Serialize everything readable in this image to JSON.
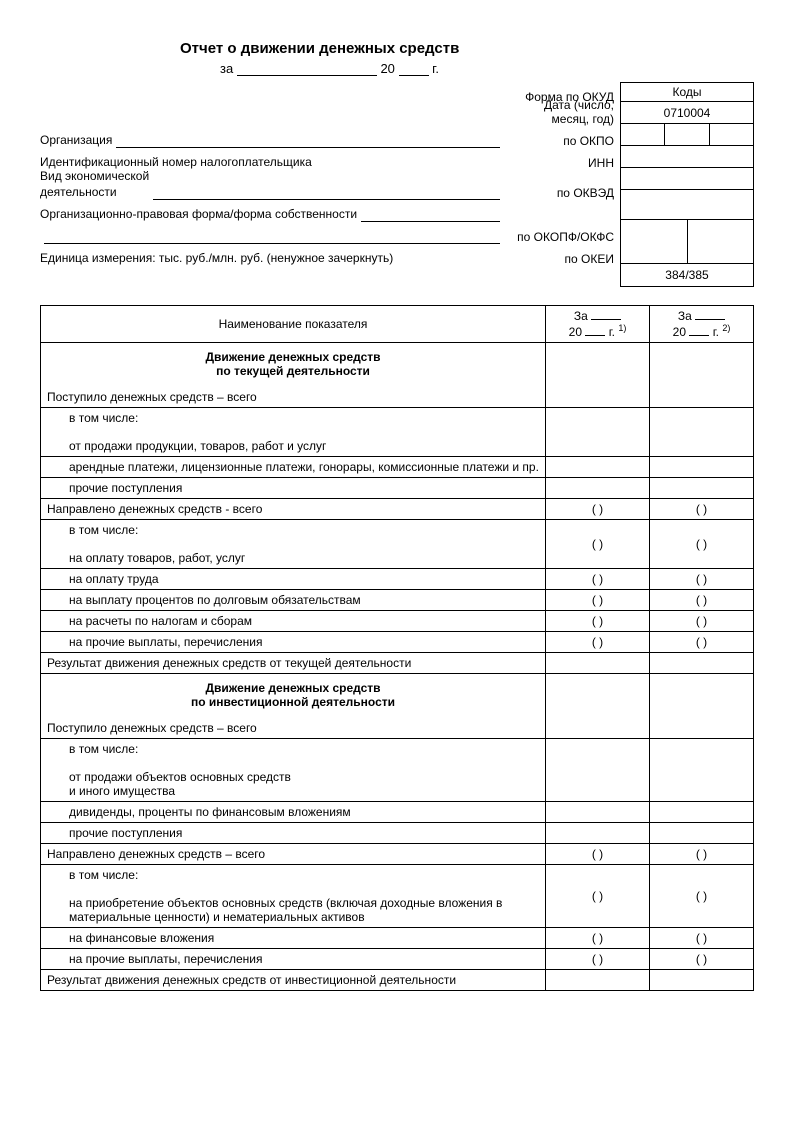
{
  "title": "Отчет о движении денежных средств",
  "subtitle_prefix": "за",
  "subtitle_mid": "20",
  "subtitle_suffix": "г.",
  "kody_title": "Коды",
  "header_rows": [
    {
      "left": "",
      "right_label": "Форма по ОКУД",
      "code": "0710004",
      "split": "single"
    },
    {
      "left": "",
      "right_label": "Дата (число, месяц, год)",
      "code": "",
      "split": "3"
    },
    {
      "left": "Организация",
      "fill": true,
      "right_label": "по ОКПО",
      "code": "",
      "split": "single"
    },
    {
      "left": "Идентификационный номер налогоплательщика",
      "right_label": "ИНН",
      "code": "",
      "split": "single"
    },
    {
      "left": "Вид экономической\nдеятельности",
      "fill": true,
      "right_label": "по ОКВЭД",
      "code": "",
      "split": "single"
    },
    {
      "left": "Организационно-правовая форма/форма собственности",
      "fill": true,
      "right_label": "",
      "code": "",
      "split": "2"
    },
    {
      "left": "",
      "fill": true,
      "right_label": "по ОКОПФ/ОКФС",
      "code": "",
      "split": "none_continue"
    },
    {
      "left": "Единица измерения: тыс. руб./млн. руб. (ненужное зачеркнуть)",
      "right_label": "по ОКЕИ",
      "code": "384/385",
      "split": "single"
    }
  ],
  "col_header_name": "Наименование показателя",
  "period_prefix": "За",
  "period_year_prefix": "20",
  "period_year_suffix": "г.",
  "footnote1": "1)",
  "footnote2": "2)",
  "bracket": "(     )",
  "rows": [
    {
      "type": "section",
      "text": "Движение денежных средств\nпо текущей деятельности"
    },
    {
      "type": "plain_nosplit",
      "text": "Поступило денежных средств – всего",
      "p1": "",
      "p2": ""
    },
    {
      "type": "indent_multiline",
      "text": "в том числе:\n\nот продажи продукции, товаров, работ и услуг",
      "p1": "",
      "p2": ""
    },
    {
      "type": "indent",
      "text": "арендные платежи, лицензионные платежи, гонорары, комиссионные платежи и пр.",
      "p1": "",
      "p2": ""
    },
    {
      "type": "indent",
      "text": "прочие поступления",
      "p1": "",
      "p2": ""
    },
    {
      "type": "plain",
      "text": "Направлено денежных средств - всего",
      "p1": "(     )",
      "p2": "(     )"
    },
    {
      "type": "indent_multiline",
      "text": "в том числе:\n\nна оплату товаров, работ, услуг",
      "p1": "(     )",
      "p2": "(     )"
    },
    {
      "type": "indent",
      "text": "на оплату труда",
      "p1": "(     )",
      "p2": "(     )"
    },
    {
      "type": "indent",
      "text": "на выплату процентов по долговым обязательствам",
      "p1": "(     )",
      "p2": "(     )"
    },
    {
      "type": "indent",
      "text": "на расчеты по налогам и сборам",
      "p1": "(     )",
      "p2": "(     )"
    },
    {
      "type": "indent",
      "text": "на прочие выплаты, перечисления",
      "p1": "(     )",
      "p2": "(     )"
    },
    {
      "type": "plain",
      "text": "Результат движения денежных средств от текущей деятельности",
      "p1": "",
      "p2": ""
    },
    {
      "type": "section",
      "text": "Движение денежных средств\nпо инвестиционной деятельности"
    },
    {
      "type": "plain_nosplit",
      "text": "Поступило денежных средств – всего",
      "p1": "",
      "p2": ""
    },
    {
      "type": "indent_multiline",
      "text": "в том числе:\n\nот продажи объектов основных средств\nи иного имущества",
      "p1": "",
      "p2": ""
    },
    {
      "type": "indent",
      "text": "дивиденды, проценты по финансовым вложениям",
      "p1": "",
      "p2": ""
    },
    {
      "type": "indent",
      "text": "прочие поступления",
      "p1": "",
      "p2": ""
    },
    {
      "type": "plain",
      "text": "Направлено денежных средств – всего",
      "p1": "(     )",
      "p2": "(     )"
    },
    {
      "type": "indent_multiline",
      "text": "в том числе:\n\nна приобретение объектов основных средств (включая доходные вложения в материальные ценности) и нематериальных активов",
      "p1": "(     )",
      "p2": "(     )"
    },
    {
      "type": "indent",
      "text": "на финансовые вложения",
      "p1": "(     )",
      "p2": "(     )"
    },
    {
      "type": "indent",
      "text": "на прочие выплаты, перечисления",
      "p1": "(     )",
      "p2": "(     )"
    },
    {
      "type": "plain",
      "text": "Результат движения денежных средств от инвестиционной деятельности",
      "p1": "",
      "p2": ""
    }
  ]
}
